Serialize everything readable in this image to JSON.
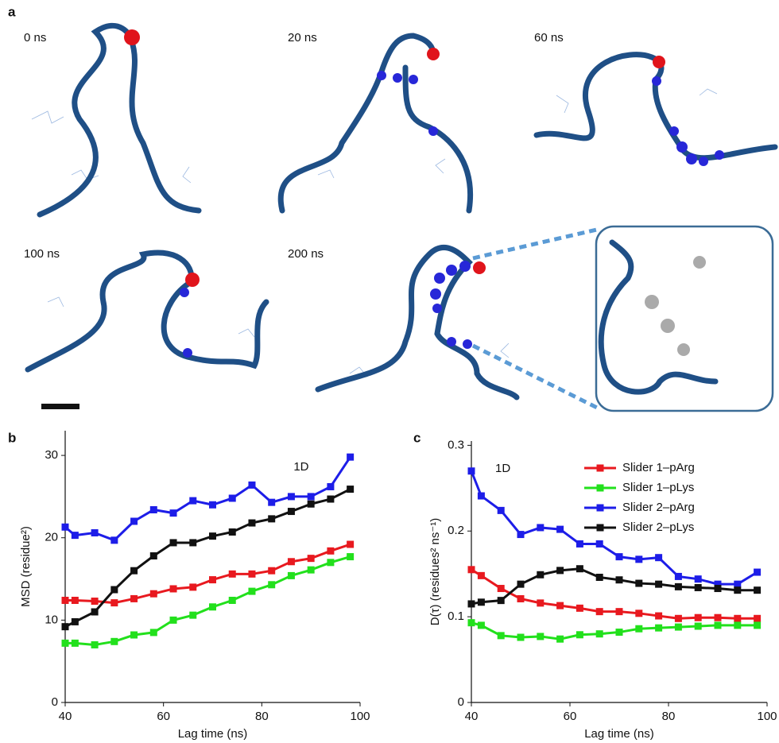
{
  "panel_a": {
    "label": "a",
    "frames": [
      "0 ns",
      "20 ns",
      "60 ns",
      "100 ns",
      "200 ns"
    ]
  },
  "chart_data": [
    {
      "type": "line",
      "label": "b",
      "annotation": "1D",
      "x_label": "Lag time (ns)",
      "y_label": "MSD (residue²)",
      "x": [
        40,
        42,
        46,
        50,
        54,
        58,
        62,
        66,
        70,
        74,
        78,
        82,
        86,
        90,
        94,
        98
      ],
      "xlim": [
        40,
        100
      ],
      "xticks": [
        40,
        60,
        80,
        100
      ],
      "ylim": [
        0,
        33
      ],
      "yticks": [
        0,
        10,
        20,
        30
      ],
      "series": [
        {
          "color": "#e8191f",
          "values": [
            12.4,
            12.4,
            12.3,
            12.1,
            12.6,
            13.2,
            13.8,
            14,
            14.9,
            15.6,
            15.6,
            16,
            17.1,
            17.5,
            18.4,
            19.2
          ]
        },
        {
          "color": "#22e01c",
          "values": [
            7.2,
            7.2,
            7,
            7.4,
            8.2,
            8.5,
            10,
            10.6,
            11.6,
            12.4,
            13.5,
            14.3,
            15.4,
            16.1,
            17,
            17.7
          ]
        },
        {
          "color": "#1d1de8",
          "values": [
            21.3,
            20.3,
            20.6,
            19.7,
            22,
            23.4,
            23,
            24.5,
            24,
            24.8,
            26.4,
            24.3,
            25,
            25,
            26.2,
            29.8
          ]
        },
        {
          "color": "#111111",
          "values": [
            9.2,
            9.8,
            11,
            13.7,
            16,
            17.8,
            19.4,
            19.4,
            20.2,
            20.7,
            21.8,
            22.3,
            23.2,
            24.1,
            24.7,
            25.9
          ]
        }
      ]
    },
    {
      "type": "line",
      "label": "c",
      "annotation": "1D",
      "x_label": "Lag time (ns)",
      "y_label": "D(τ) (residues² ns⁻¹)",
      "x": [
        40,
        42,
        46,
        50,
        54,
        58,
        62,
        66,
        70,
        74,
        78,
        82,
        86,
        90,
        94,
        98
      ],
      "xlim": [
        40,
        100
      ],
      "xticks": [
        40,
        60,
        80,
        100
      ],
      "ylim": [
        0,
        0.305
      ],
      "yticks": [
        0,
        0.1,
        0.2,
        0.3
      ],
      "legend": "top-right",
      "series": [
        {
          "name": "Slider 1–pArg",
          "color": "#e8191f",
          "values": [
            0.155,
            0.148,
            0.133,
            0.121,
            0.116,
            0.113,
            0.11,
            0.106,
            0.106,
            0.104,
            0.101,
            0.098,
            0.099,
            0.099,
            0.098,
            0.098
          ]
        },
        {
          "name": "Slider 1–pLys",
          "color": "#22e01c",
          "values": [
            0.093,
            0.09,
            0.078,
            0.076,
            0.077,
            0.074,
            0.079,
            0.08,
            0.082,
            0.086,
            0.087,
            0.088,
            0.089,
            0.09,
            0.09,
            0.09
          ]
        },
        {
          "name": "Slider 2–pArg",
          "color": "#1d1de8",
          "values": [
            0.27,
            0.241,
            0.224,
            0.196,
            0.204,
            0.202,
            0.185,
            0.185,
            0.17,
            0.167,
            0.169,
            0.147,
            0.144,
            0.138,
            0.138,
            0.152
          ]
        },
        {
          "name": "Slider 2–pLys",
          "color": "#111111",
          "values": [
            0.115,
            0.117,
            0.119,
            0.138,
            0.149,
            0.154,
            0.156,
            0.146,
            0.143,
            0.139,
            0.138,
            0.135,
            0.134,
            0.133,
            0.131,
            0.131
          ]
        }
      ]
    }
  ]
}
